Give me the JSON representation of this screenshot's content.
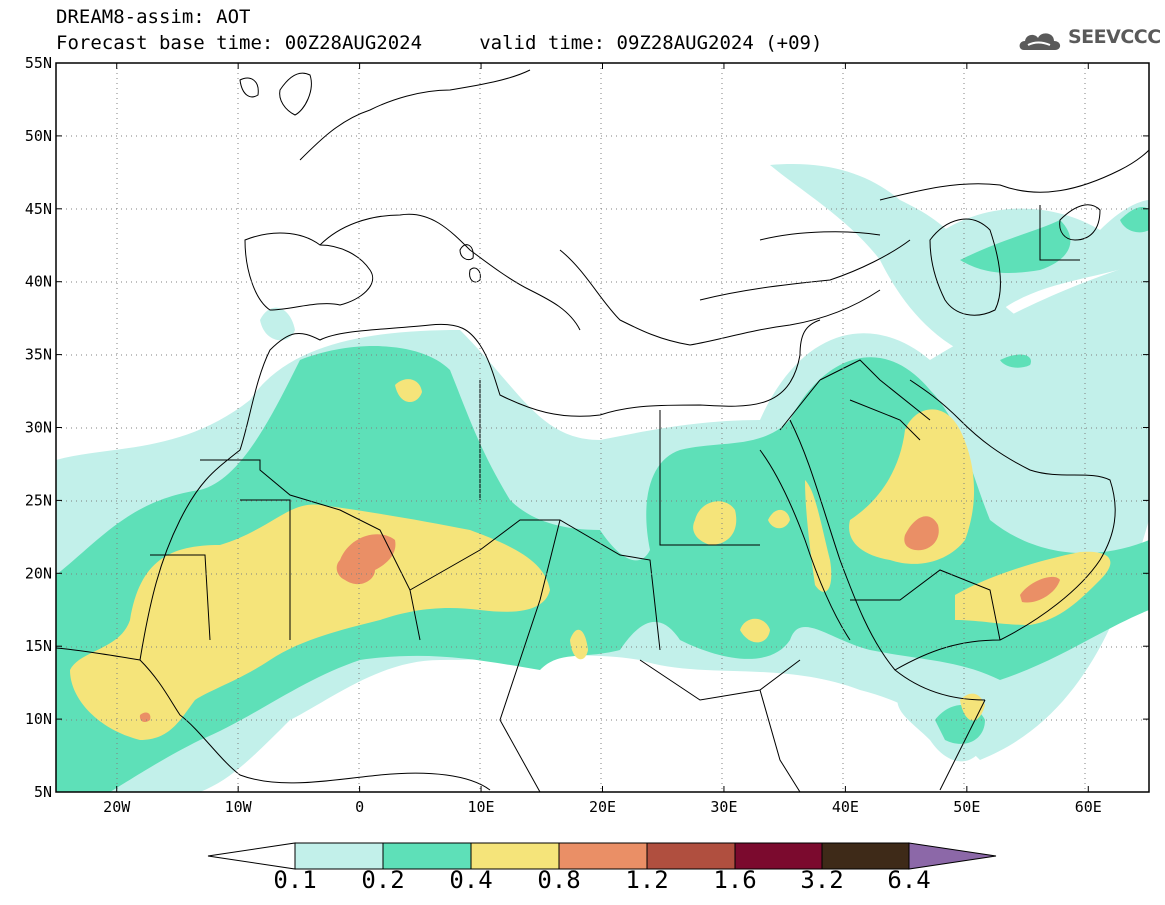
{
  "title": {
    "line1": "DREAM8-assim: AOT",
    "line2": "Forecast base time: 00Z28AUG2024     valid time: 09Z28AUG2024 (+09)"
  },
  "logo": {
    "text": "SEEVCCC",
    "icon": "cloud-logo-icon"
  },
  "map": {
    "lon_range": [
      -25,
      65
    ],
    "lat_range": [
      5,
      55
    ],
    "lon_ticks": [
      {
        "value": -20,
        "label": "20W"
      },
      {
        "value": -10,
        "label": "10W"
      },
      {
        "value": 0,
        "label": "0"
      },
      {
        "value": 10,
        "label": "10E"
      },
      {
        "value": 20,
        "label": "20E"
      },
      {
        "value": 30,
        "label": "30E"
      },
      {
        "value": 40,
        "label": "40E"
      },
      {
        "value": 50,
        "label": "50E"
      },
      {
        "value": 60,
        "label": "60E"
      }
    ],
    "lat_ticks": [
      {
        "value": 55,
        "label": "55N"
      },
      {
        "value": 50,
        "label": "50N"
      },
      {
        "value": 45,
        "label": "45N"
      },
      {
        "value": 40,
        "label": "40N"
      },
      {
        "value": 35,
        "label": "35N"
      },
      {
        "value": 30,
        "label": "30N"
      },
      {
        "value": 25,
        "label": "25N"
      },
      {
        "value": 20,
        "label": "20N"
      },
      {
        "value": 15,
        "label": "15N"
      },
      {
        "value": 10,
        "label": "10N"
      },
      {
        "value": 5,
        "label": "5N"
      }
    ],
    "grid": true
  },
  "colorbar": {
    "colors": [
      "#ffffff",
      "#c2f0ea",
      "#5ee0b8",
      "#f5e47a",
      "#ea8f66",
      "#b04f3f",
      "#7b0a2e",
      "#3e2a18",
      "#8c68a8"
    ],
    "labels": [
      "0.1",
      "0.2",
      "0.4",
      "0.8",
      "1.2",
      "1.6",
      "3.2",
      "6.4"
    ]
  }
}
